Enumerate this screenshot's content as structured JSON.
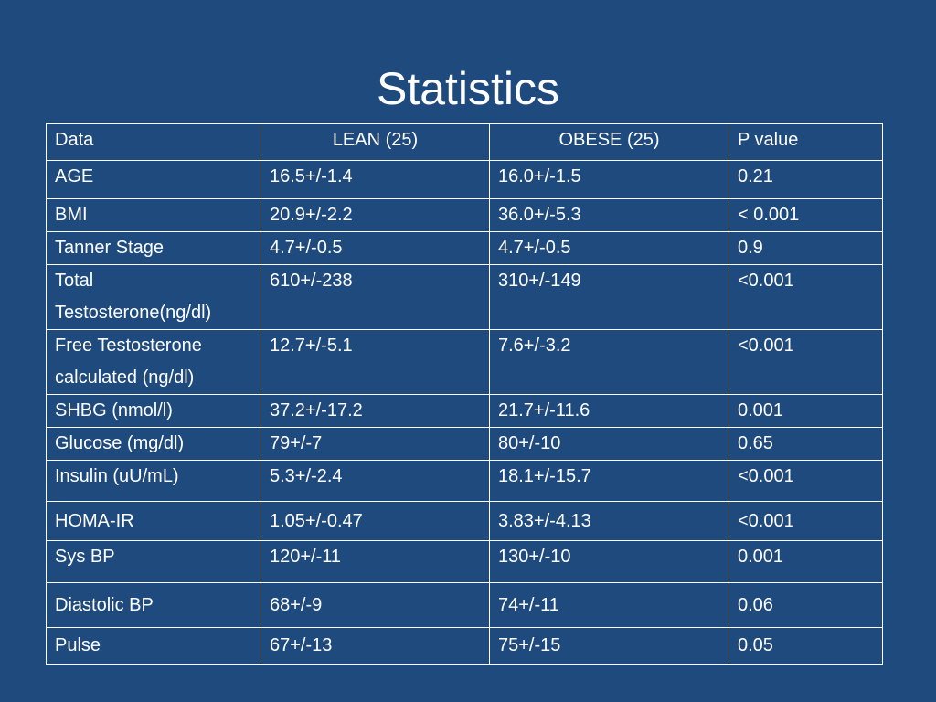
{
  "slide": {
    "title": "Statistics"
  },
  "table": {
    "headers": [
      "Data",
      "LEAN (25)",
      "OBESE (25)",
      "P value"
    ],
    "rows": [
      {
        "label_lines": [
          "AGE"
        ],
        "lean": "16.5+/-1.4",
        "obese": "16.0+/-1.5",
        "p": "0.21"
      },
      {
        "label_lines": [
          "BMI"
        ],
        "lean": "20.9+/-2.2",
        "obese": "36.0+/-5.3",
        "p": "< 0.001"
      },
      {
        "label_lines": [
          "Tanner Stage"
        ],
        "lean": "4.7+/-0.5",
        "obese": "4.7+/-0.5",
        "p": "0.9"
      },
      {
        "label_lines": [
          "Total",
          "Testosterone(ng/dl)"
        ],
        "lean": "610+/-238",
        "obese": "310+/-149",
        "p": "<0.001"
      },
      {
        "label_lines": [
          "Free Testosterone",
          "calculated (ng/dl)"
        ],
        "lean": "12.7+/-5.1",
        "obese": "7.6+/-3.2",
        "p": "<0.001"
      },
      {
        "label_lines": [
          "SHBG (nmol/l)"
        ],
        "lean": "37.2+/-17.2",
        "obese": "21.7+/-11.6",
        "p": "0.001"
      },
      {
        "label_lines": [
          "Glucose (mg/dl)"
        ],
        "lean": "79+/-7",
        "obese": "80+/-10",
        "p": "0.65"
      },
      {
        "label_lines": [
          "Insulin (uU/mL)"
        ],
        "lean": "5.3+/-2.4",
        "obese": "18.1+/-15.7",
        "p": "<0.001"
      },
      {
        "label_lines": [
          "HOMA-IR"
        ],
        "lean": "1.05+/-0.47",
        "obese": "3.83+/-4.13",
        "p": "<0.001"
      },
      {
        "label_lines": [
          "Sys BP"
        ],
        "lean": "120+/-11",
        "obese": "130+/-10",
        "p": "0.001"
      },
      {
        "label_lines": [
          "Diastolic BP"
        ],
        "lean": "68+/-9",
        "obese": "74+/-11",
        "p": "0.06"
      },
      {
        "label_lines": [
          "Pulse"
        ],
        "lean": "67+/-13",
        "obese": "75+/-15",
        "p": "0.05"
      }
    ]
  },
  "colors": {
    "background": "#1f4a7e",
    "text": "#ffffff",
    "grid": "#ffffff"
  }
}
